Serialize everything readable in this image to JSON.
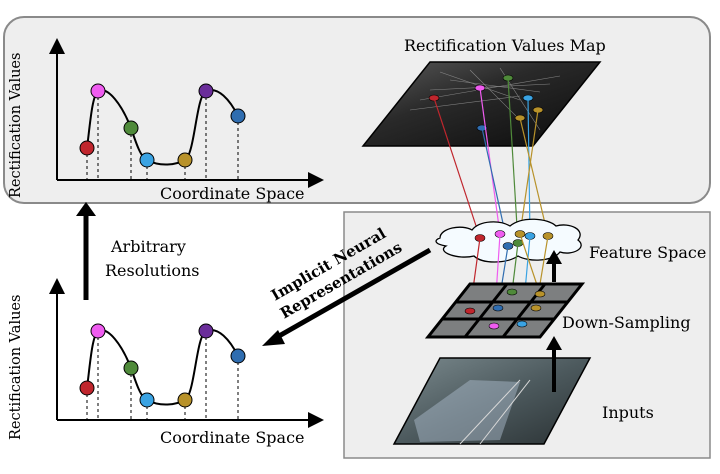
{
  "top_panel": {
    "map_title": "Rectification Values Map",
    "x_label": "Coordinate Space",
    "y_label": "Rectification Values"
  },
  "bottom_panel": {
    "x_label": "Coordinate Space",
    "y_label": "Rectification Values"
  },
  "arbitrary": {
    "line1": "Arbitrary",
    "line2": "Resolutions"
  },
  "inr": {
    "line1": "Implicit Neural",
    "line2": "Representations"
  },
  "pipeline": {
    "feature_space": "Feature Space",
    "down_sampling": "Down-Sampling",
    "inputs": "Inputs"
  },
  "samples": [
    {
      "color": "#c0262d"
    },
    {
      "color": "#ef5cf0"
    },
    {
      "color": "#4f8a3a"
    },
    {
      "color": "#3aa3e3"
    },
    {
      "color": "#b8922a"
    },
    {
      "color": "#6a2d9a"
    },
    {
      "color": "#2f6db0"
    }
  ],
  "colors": {
    "panel_fill": "#eeeeee",
    "panel_stroke": "#8a8a8a"
  }
}
